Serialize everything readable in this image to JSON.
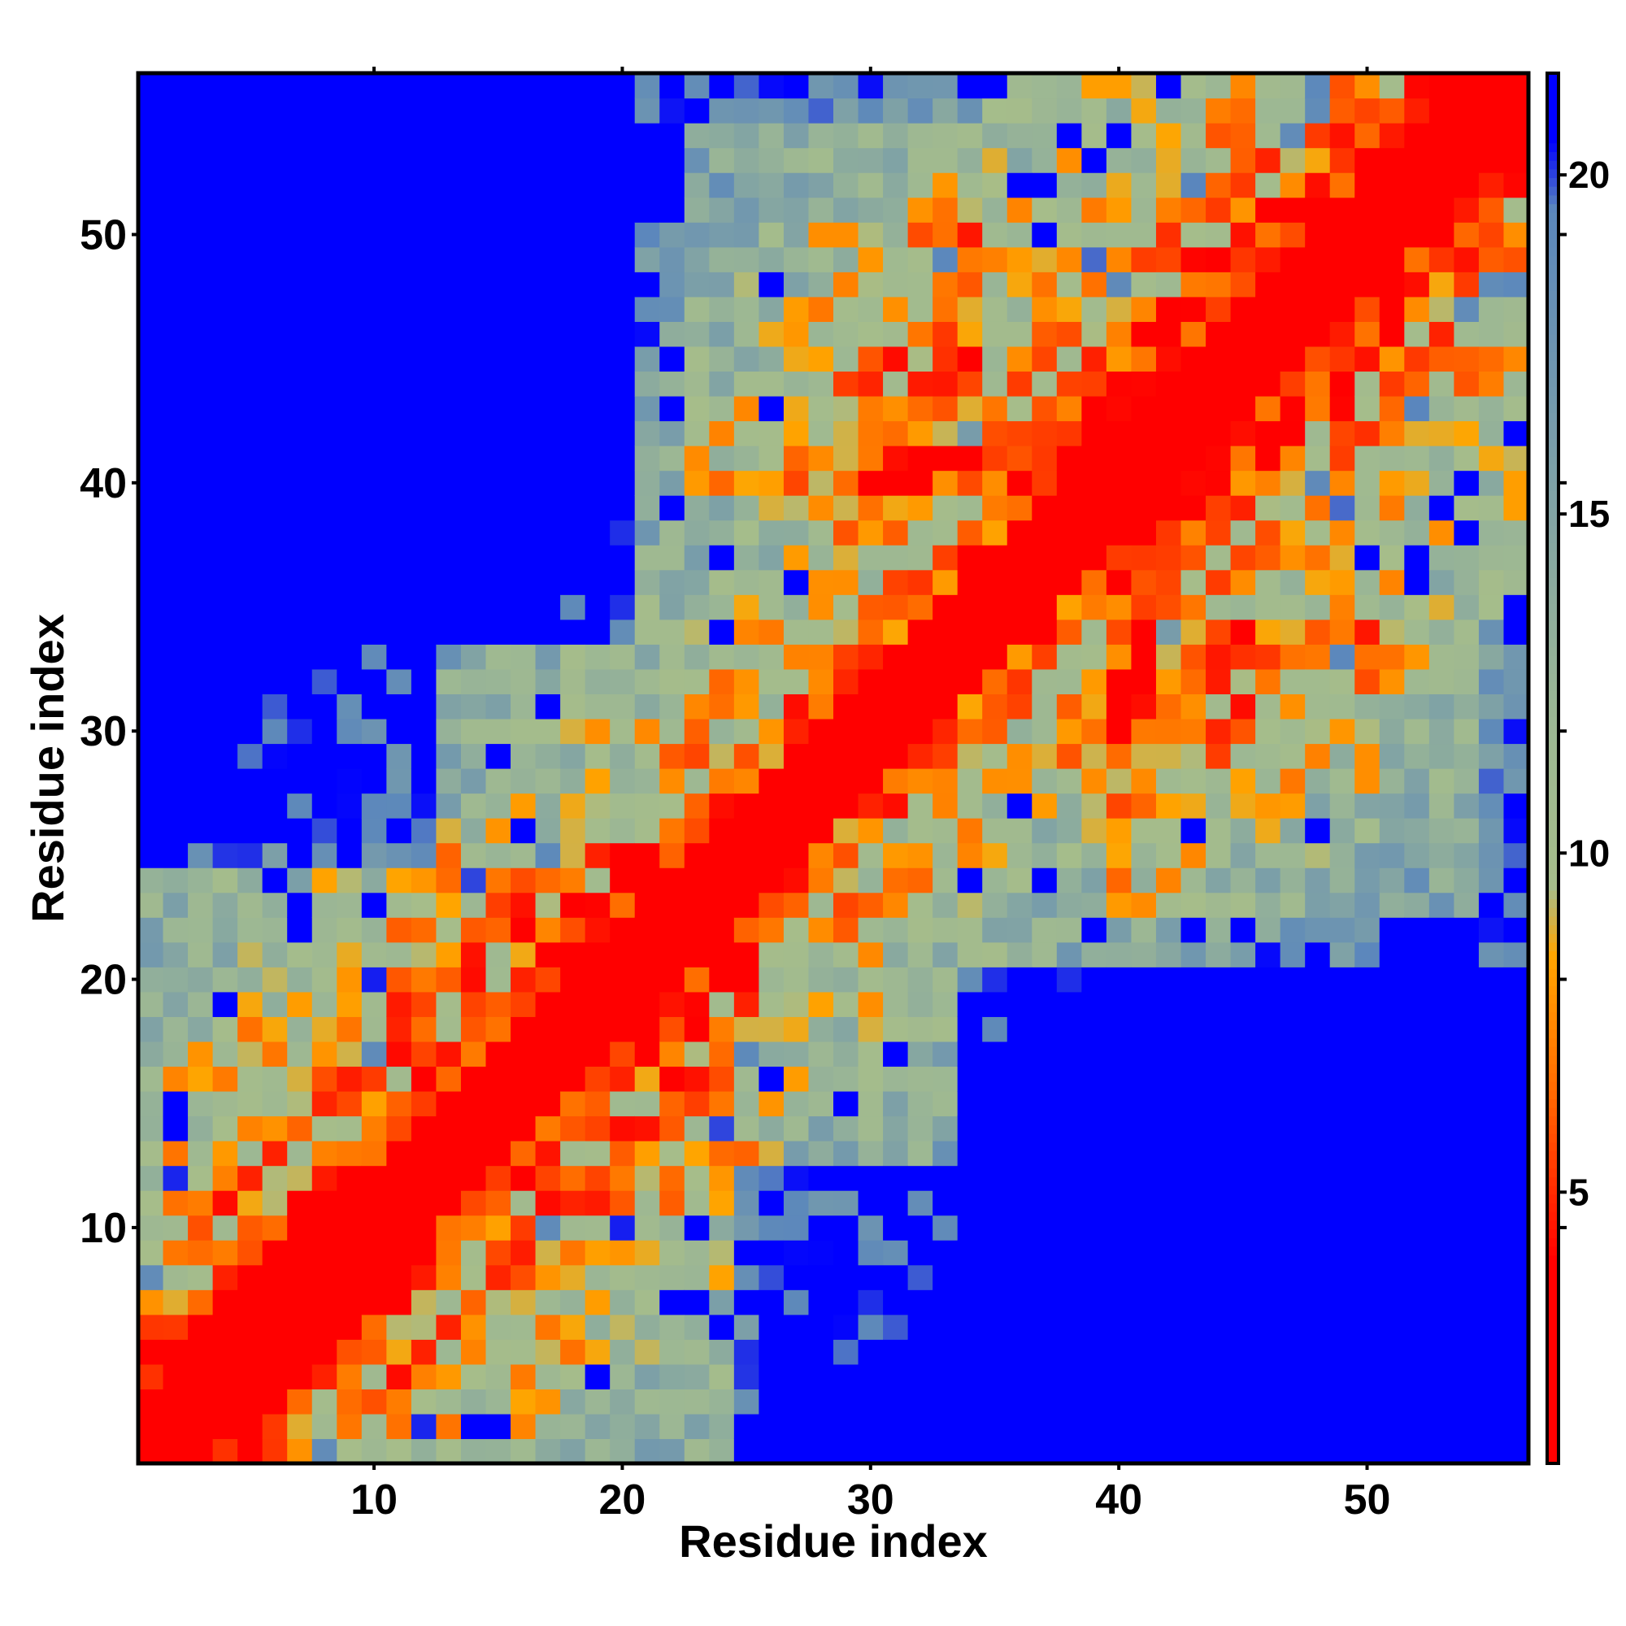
{
  "chart_data": {
    "type": "heatmap",
    "title": "",
    "xlabel": "Residue index",
    "ylabel": "Residue index",
    "n_residues": 56,
    "xlim": [
      0.5,
      56.5
    ],
    "ylim": [
      0.5,
      56.5
    ],
    "x_ticks": [
      10,
      20,
      30,
      40,
      50
    ],
    "y_ticks": [
      10,
      20,
      30,
      40,
      50
    ],
    "colorbar": {
      "ticks": [
        5,
        10,
        15,
        20
      ],
      "range": [
        1,
        21.5
      ],
      "stops": [
        {
          "v": 1,
          "color": "#ff0000"
        },
        {
          "v": 4,
          "color": "#ff0000"
        },
        {
          "v": 6.5,
          "color": "#ff6a00"
        },
        {
          "v": 8.5,
          "color": "#ffa500"
        },
        {
          "v": 9.5,
          "color": "#a6bd8a"
        },
        {
          "v": 12,
          "color": "#9cb794"
        },
        {
          "v": 19.5,
          "color": "#5b87bc"
        },
        {
          "v": 20.5,
          "color": "#0000ff"
        },
        {
          "v": 21.5,
          "color": "#0000ff"
        }
      ]
    },
    "description": "Symmetric residue–residue distance map; values near diagonal are small (red), distances above ~20 shown in blue",
    "cutoff_blue": 20
  }
}
